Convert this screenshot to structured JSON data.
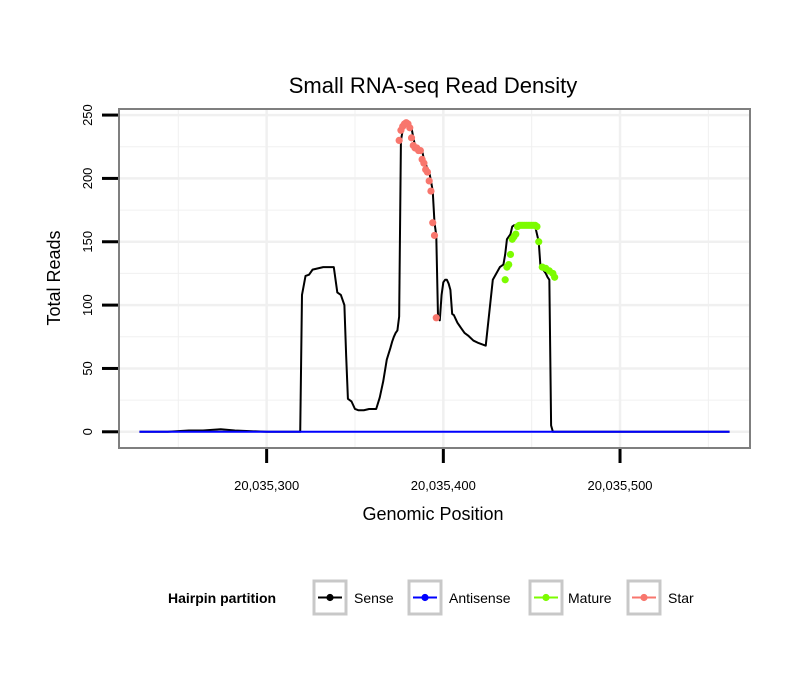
{
  "chart_data": {
    "type": "line",
    "title": "Small RNA-seq Read Density",
    "xlabel": "Genomic Position",
    "ylabel": "Total Reads",
    "xlim": [
      20035217,
      20035573
    ],
    "ylim": [
      -12,
      254
    ],
    "x_ticks": [
      20035300,
      20035400,
      20035500
    ],
    "x_tick_labels": [
      "20,035,300",
      "20,035,400",
      "20,035,500"
    ],
    "y_ticks": [
      0,
      50,
      100,
      150,
      200,
      250
    ],
    "y_tick_labels": [
      "0",
      "50",
      "100",
      "150",
      "200",
      "250"
    ],
    "legend": {
      "title": "Hairpin partition",
      "position": "bottom",
      "entries": [
        {
          "name": "Sense",
          "color": "#000000"
        },
        {
          "name": "Antisense",
          "color": "#0000ff"
        },
        {
          "name": "Mature",
          "color": "#7cfc00"
        },
        {
          "name": "Star",
          "color": "#f8766d"
        }
      ]
    },
    "colors": {
      "sense": "#000000",
      "antisense": "#0000ff",
      "mature": "#7cfc00",
      "star": "#f8766d",
      "panel_border": "#7f7f7f",
      "grid": "#f0f0f0"
    },
    "series": [
      {
        "name": "Sense",
        "type": "line",
        "x": [
          20035228,
          20035244,
          20035256,
          20035264,
          20035274,
          20035282,
          20035300,
          20035319,
          20035320,
          20035322,
          20035324,
          20035326,
          20035332,
          20035338,
          20035340,
          20035342,
          20035344,
          20035345,
          20035346,
          20035348,
          20035350,
          20035352,
          20035355,
          20035358,
          20035362,
          20035364,
          20035366,
          20035368,
          20035370,
          20035371,
          20035372,
          20035373,
          20035374,
          20035375,
          20035376,
          20035377,
          20035378,
          20035379,
          20035380,
          20035381,
          20035382,
          20035383,
          20035384,
          20035385,
          20035386,
          20035387,
          20035388,
          20035389,
          20035390,
          20035391,
          20035392,
          20035393,
          20035394,
          20035395,
          20035396,
          20035397,
          20035398,
          20035399,
          20035400,
          20035401,
          20035402,
          20035403,
          20035404,
          20035405,
          20035406,
          20035407,
          20035408,
          20035409,
          20035410,
          20035412,
          20035414,
          20035417,
          20035420,
          20035424,
          20035428,
          20035432,
          20035434,
          20035435,
          20035436,
          20035437,
          20035438,
          20035439,
          20035440,
          20035441,
          20035442,
          20035443,
          20035444,
          20035446,
          20035448,
          20035450,
          20035452,
          20035454,
          20035455,
          20035456,
          20035457,
          20035458,
          20035459,
          20035460,
          20035461,
          20035462,
          20035463,
          20035464,
          20035465,
          20035480,
          20035500,
          20035520,
          20035562
        ],
        "y": [
          0,
          0,
          1,
          1,
          2,
          1,
          0,
          0,
          108,
          123,
          124,
          128,
          130,
          130,
          110,
          108,
          100,
          60,
          26,
          24,
          18,
          17,
          17,
          18,
          18,
          27,
          40,
          57,
          66,
          71,
          75,
          78,
          80,
          91,
          230,
          238,
          241,
          243,
          244,
          243,
          240,
          232,
          226,
          224,
          224,
          222,
          222,
          215,
          212,
          207,
          205,
          198,
          190,
          165,
          155,
          90,
          88,
          108,
          118,
          120,
          120,
          117,
          112,
          93,
          92,
          89,
          86,
          84,
          82,
          78,
          76,
          72,
          70,
          68,
          120,
          130,
          132,
          140,
          152,
          154,
          156,
          162,
          163,
          163,
          163,
          163,
          163,
          163,
          163,
          163,
          162,
          150,
          130,
          129,
          127,
          125,
          122,
          120,
          5,
          0,
          0,
          0,
          0,
          0,
          0,
          0,
          0
        ]
      },
      {
        "name": "Antisense",
        "type": "line",
        "x": [
          20035228,
          20035562
        ],
        "y": [
          0,
          0
        ]
      },
      {
        "name": "Mature",
        "type": "points",
        "x": [
          20035435,
          20035436,
          20035437,
          20035438,
          20035439,
          20035440,
          20035441,
          20035442,
          20035443,
          20035444,
          20035445,
          20035446,
          20035447,
          20035448,
          20035449,
          20035450,
          20035451,
          20035452,
          20035453,
          20035454,
          20035456,
          20035458,
          20035460,
          20035462,
          20035463
        ],
        "y": [
          120,
          130,
          132,
          140,
          152,
          154,
          156,
          162,
          163,
          163,
          163,
          163,
          163,
          163,
          163,
          163,
          163,
          163,
          162,
          150,
          130,
          129,
          127,
          125,
          122
        ]
      },
      {
        "name": "Star",
        "type": "points",
        "x": [
          20035375,
          20035376,
          20035377,
          20035378,
          20035379,
          20035380,
          20035381,
          20035382,
          20035383,
          20035384,
          20035385,
          20035386,
          20035387,
          20035388,
          20035389,
          20035390,
          20035391,
          20035392,
          20035393,
          20035394,
          20035395,
          20035396
        ],
        "y": [
          230,
          238,
          241,
          243,
          244,
          243,
          240,
          232,
          226,
          224,
          224,
          222,
          222,
          215,
          212,
          207,
          205,
          198,
          190,
          165,
          155,
          90
        ]
      }
    ]
  }
}
